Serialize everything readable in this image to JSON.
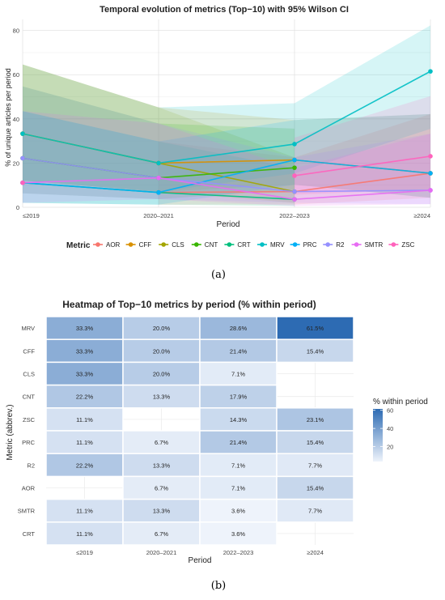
{
  "chart_data": [
    {
      "type": "line",
      "title": "Temporal evolution of metrics (Top−10) with 95% Wilson CI",
      "xlabel": "Period",
      "ylabel": "% of unique articles per period",
      "categories": [
        "≤2019",
        "2020–2021",
        "2022–2023",
        "≥2024"
      ],
      "ylim": [
        0,
        85
      ],
      "yticks": [
        0,
        20,
        40,
        60,
        80
      ],
      "grid": true,
      "legend_title": "Metric",
      "legend_position": "bottom",
      "series": [
        {
          "name": "AOR",
          "color": "#F8766D",
          "values": [
            null,
            6.7,
            7.1,
            15.4
          ],
          "ci_low": [
            null,
            1.2,
            1.3,
            4.3
          ],
          "ci_high": [
            null,
            29.8,
            22.6,
            42.2
          ]
        },
        {
          "name": "CFF",
          "color": "#D89000",
          "values": [
            33.3,
            20.0,
            21.4,
            15.4
          ],
          "ci_low": [
            12.1,
            7.0,
            10.2,
            4.3
          ],
          "ci_high": [
            64.6,
            45.2,
            39.5,
            42.2
          ]
        },
        {
          "name": "CLS",
          "color": "#A3A500",
          "values": [
            33.3,
            20.0,
            7.1,
            null
          ],
          "ci_low": [
            12.1,
            7.0,
            2.0,
            null
          ],
          "ci_high": [
            64.6,
            45.2,
            22.6,
            null
          ]
        },
        {
          "name": "CNT",
          "color": "#39B600",
          "values": [
            22.2,
            13.3,
            17.9,
            null
          ],
          "ci_low": [
            6.3,
            3.7,
            7.9,
            null
          ],
          "ci_high": [
            54.7,
            37.9,
            35.6,
            null
          ]
        },
        {
          "name": "CRT",
          "color": "#00BF7D",
          "values": [
            11.1,
            6.7,
            3.6,
            null
          ],
          "ci_low": [
            2.0,
            1.2,
            0.6,
            null
          ],
          "ci_high": [
            43.5,
            29.8,
            17.7,
            null
          ]
        },
        {
          "name": "MRV",
          "color": "#00BFC4",
          "values": [
            33.3,
            20.0,
            28.6,
            61.5
          ],
          "ci_low": [
            12.1,
            7.0,
            15.3,
            35.5
          ],
          "ci_high": [
            64.6,
            45.2,
            47.1,
            82.3
          ]
        },
        {
          "name": "PRC",
          "color": "#00B0F6",
          "values": [
            11.1,
            6.7,
            21.4,
            15.4
          ],
          "ci_low": [
            2.0,
            1.2,
            10.2,
            4.3
          ],
          "ci_high": [
            43.5,
            29.8,
            39.5,
            42.2
          ]
        },
        {
          "name": "R2",
          "color": "#9590FF",
          "values": [
            22.2,
            13.3,
            7.1,
            7.7
          ],
          "ci_low": [
            6.3,
            3.7,
            2.0,
            1.4
          ],
          "ci_high": [
            54.7,
            37.9,
            22.6,
            33.3
          ]
        },
        {
          "name": "SMTR",
          "color": "#E76BF3",
          "values": [
            11.1,
            13.3,
            3.6,
            7.7
          ],
          "ci_low": [
            2.0,
            3.7,
            0.6,
            1.4
          ],
          "ci_high": [
            43.5,
            37.9,
            17.7,
            33.3
          ]
        },
        {
          "name": "ZSC",
          "color": "#FF62BC",
          "values": [
            11.1,
            null,
            14.3,
            23.1
          ],
          "ci_low": [
            2.0,
            null,
            5.7,
            8.2
          ],
          "ci_high": [
            43.5,
            null,
            31.5,
            50.3
          ]
        }
      ]
    },
    {
      "type": "heatmap",
      "title": "Heatmap of Top−10 metrics by period (% within period)",
      "xlabel": "Period",
      "ylabel": "Metric (abbrev.)",
      "x": [
        "≤2019",
        "2020–2021",
        "2022–2023",
        "≥2024"
      ],
      "y": [
        "MRV",
        "CFF",
        "CLS",
        "CNT",
        "ZSC",
        "PRC",
        "R2",
        "AOR",
        "SMTR",
        "CRT"
      ],
      "values": [
        [
          33.3,
          20.0,
          28.6,
          61.5
        ],
        [
          33.3,
          20.0,
          21.4,
          15.4
        ],
        [
          33.3,
          20.0,
          7.1,
          null
        ],
        [
          22.2,
          13.3,
          17.9,
          null
        ],
        [
          11.1,
          null,
          14.3,
          23.1
        ],
        [
          11.1,
          6.7,
          21.4,
          15.4
        ],
        [
          22.2,
          13.3,
          7.1,
          7.7
        ],
        [
          null,
          6.7,
          7.1,
          15.4
        ],
        [
          11.1,
          13.3,
          3.6,
          7.7
        ],
        [
          11.1,
          6.7,
          3.6,
          null
        ]
      ],
      "colorbar_title": "% within period",
      "colorbar_ticks": [
        20,
        40,
        60
      ],
      "color_range": [
        3.6,
        61.5
      ],
      "color_low": "#eef3fb",
      "color_high": "#2d6bb3"
    }
  ],
  "captions": {
    "a": "(a)",
    "b": "(b)"
  }
}
